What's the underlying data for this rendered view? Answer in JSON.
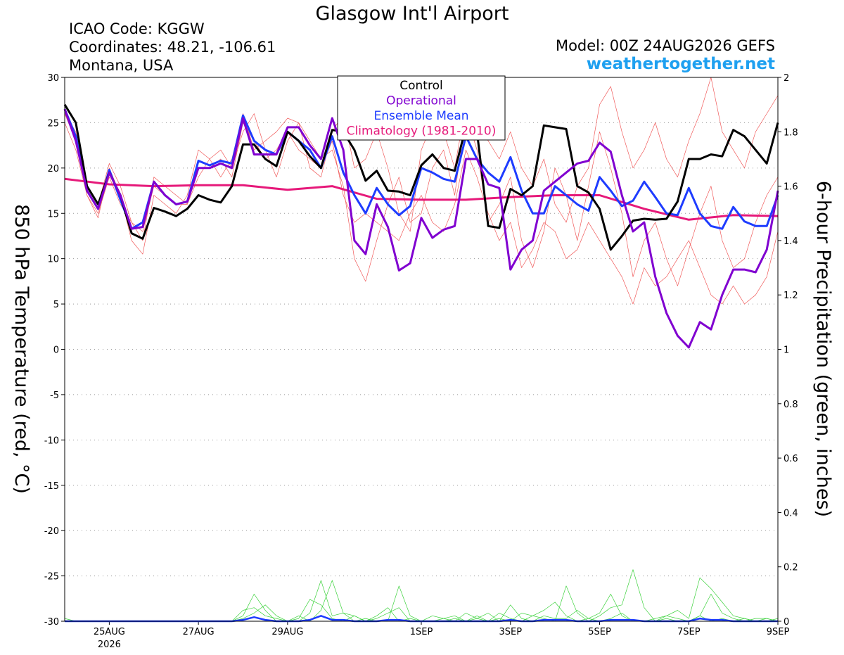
{
  "chart_data": {
    "type": "line",
    "title": "Glasgow Int'l Airport",
    "info_left": [
      "ICAO Code: KGGW",
      "Coordinates: 48.21, -106.61",
      "Montana, USA"
    ],
    "model": "Model: 00Z 24AUG2026 GEFS",
    "site": "weathertogether.net",
    "ylabel": "850 hPa Temperature (red, °C)",
    "y2label": "6-hour Precipitation (green, inches)",
    "grid": true,
    "xlim": [
      0,
      16
    ],
    "xticks": [
      {
        "value": 1,
        "label": "25AUG"
      },
      {
        "value": 3,
        "label": "27AUG"
      },
      {
        "value": 5,
        "label": "29AUG"
      },
      {
        "value": 8,
        "label": "1SEP"
      },
      {
        "value": 10,
        "label": "3SEP"
      },
      {
        "value": 12,
        "label": "5SEP"
      },
      {
        "value": 14,
        "label": "7SEP"
      },
      {
        "value": 16,
        "label": "9SEP"
      }
    ],
    "year_label": "2026",
    "ylim": [
      -30,
      30
    ],
    "yticks": [
      30,
      25,
      20,
      15,
      10,
      5,
      0,
      -5,
      -10,
      -15,
      -20,
      -25,
      -30
    ],
    "y2lim": [
      0,
      2
    ],
    "y2ticks": [
      0,
      0.2,
      0.4,
      0.6,
      0.8,
      1,
      1.2,
      1.4,
      1.6,
      1.8,
      2
    ],
    "x": [
      0,
      0.25,
      0.5,
      0.75,
      1,
      1.25,
      1.5,
      1.75,
      2,
      2.25,
      2.5,
      2.75,
      3,
      3.25,
      3.5,
      3.75,
      4,
      4.25,
      4.5,
      4.75,
      5,
      5.25,
      5.5,
      5.75,
      6,
      6.25,
      6.5,
      6.75,
      7,
      7.25,
      7.5,
      7.75,
      8,
      8.25,
      8.5,
      8.75,
      9,
      9.25,
      9.5,
      9.75,
      10,
      10.25,
      10.5,
      10.75,
      11,
      11.25,
      11.5,
      11.75,
      12,
      12.25,
      12.5,
      12.75,
      13,
      13.25,
      13.5,
      13.75,
      14,
      14.25,
      14.5,
      14.75,
      15,
      15.25,
      15.5,
      15.75,
      16
    ],
    "members": [
      {
        "color": "#f05a5a",
        "values": [
          25,
          22,
          17,
          14.5,
          20,
          17,
          12,
          10.5,
          17,
          16,
          15,
          17,
          22,
          21,
          19,
          21,
          26,
          22,
          23,
          24,
          25.5,
          25,
          23,
          21,
          22,
          18,
          10,
          7.5,
          12,
          16,
          19,
          14,
          15,
          20,
          22,
          17,
          26,
          22,
          14,
          16,
          19,
          12,
          9,
          13,
          20,
          17,
          12,
          18,
          24,
          20,
          15,
          8,
          12,
          14,
          10,
          7,
          11,
          15,
          18,
          12,
          9,
          10,
          14,
          17,
          19
        ]
      },
      {
        "color": "#f05a5a",
        "values": [
          26,
          24,
          18,
          16,
          20.5,
          18,
          14,
          12,
          19,
          18,
          17,
          16,
          19,
          21,
          22,
          20,
          24,
          26,
          22,
          19,
          23,
          25,
          20,
          19,
          24,
          26,
          20,
          21,
          24,
          20,
          15,
          13,
          22,
          25,
          24,
          20,
          27,
          25,
          23,
          21,
          24,
          20,
          18,
          21,
          16,
          14,
          18,
          20,
          27,
          29,
          24,
          20,
          22,
          25,
          21,
          19,
          23,
          26,
          30,
          24,
          22,
          20,
          24,
          26,
          28
        ]
      },
      {
        "color": "#f05a5a",
        "values": [
          26,
          23,
          17,
          15,
          19,
          16,
          14,
          13,
          18,
          17,
          16,
          16,
          20,
          20,
          21,
          19,
          25,
          23,
          21,
          22,
          24,
          22,
          21,
          20,
          23,
          17,
          14,
          15,
          14,
          13,
          12,
          15,
          17,
          14,
          13,
          16,
          22,
          19,
          15,
          12,
          14,
          9,
          11,
          14,
          13,
          10,
          11,
          14,
          12,
          10,
          8,
          5,
          9,
          7,
          8,
          10,
          12,
          9,
          6,
          5,
          7,
          5,
          6,
          8,
          13
        ]
      }
    ],
    "precip_members": [
      {
        "color": "#3cd23c",
        "axis": "y2",
        "values": [
          0.01,
          0,
          0,
          0,
          0,
          0,
          0,
          0,
          0,
          0,
          0,
          0,
          0,
          0,
          0,
          0,
          0.02,
          0.1,
          0.04,
          0,
          0,
          0,
          0.03,
          0.15,
          0.02,
          0.03,
          0,
          0.01,
          0,
          0,
          0.13,
          0.02,
          0,
          0,
          0,
          0.01,
          0,
          0.02,
          0,
          0.01,
          0,
          0.03,
          0.02,
          0.01,
          0,
          0.13,
          0.03,
          0,
          0.02,
          0.05,
          0.06,
          0.19,
          0.05,
          0,
          0.01,
          0,
          0,
          0.02,
          0,
          0.01,
          0,
          0.01,
          0,
          0,
          0.01
        ]
      },
      {
        "color": "#3cd23c",
        "axis": "y2",
        "values": [
          0,
          0,
          0,
          0,
          0,
          0,
          0,
          0,
          0,
          0,
          0,
          0,
          0,
          0,
          0,
          0,
          0.01,
          0.03,
          0.06,
          0.02,
          0,
          0.02,
          0,
          0.04,
          0.15,
          0.03,
          0.02,
          0,
          0.01,
          0.03,
          0.05,
          0,
          0,
          0.02,
          0.01,
          0,
          0.03,
          0.01,
          0.03,
          0,
          0.06,
          0.01,
          0,
          0.02,
          0.01,
          0.01,
          0.04,
          0.01,
          0,
          0.01,
          0.03,
          0,
          0,
          0.01,
          0.02,
          0.04,
          0.01,
          0.16,
          0.12,
          0.07,
          0.02,
          0.01,
          0,
          0.01,
          0
        ]
      },
      {
        "color": "#3cd23c",
        "axis": "y2",
        "values": [
          0,
          0,
          0,
          0,
          0,
          0,
          0,
          0,
          0,
          0,
          0,
          0,
          0,
          0,
          0,
          0,
          0.04,
          0.05,
          0.02,
          0.01,
          0,
          0.01,
          0.08,
          0.06,
          0.01,
          0,
          0.02,
          0,
          0.02,
          0.05,
          0,
          0.01,
          0,
          0,
          0.01,
          0.02,
          0,
          0.01,
          0,
          0.03,
          0.01,
          0,
          0.02,
          0.04,
          0.07,
          0.02,
          0,
          0.01,
          0.03,
          0.1,
          0.02,
          0,
          0,
          0,
          0.02,
          0.01,
          0,
          0.02,
          0.1,
          0.03,
          0.01,
          0,
          0.01,
          0.01,
          0
        ]
      },
      {
        "color": "#1e3cff",
        "axis": "y2",
        "values": [
          0,
          0,
          0,
          0,
          0,
          0,
          0,
          0,
          0,
          0,
          0,
          0,
          0,
          0,
          0,
          0,
          0.005,
          0.015,
          0.005,
          0,
          0,
          0,
          0.005,
          0.02,
          0.005,
          0.005,
          0,
          0,
          0,
          0.005,
          0.005,
          0,
          0,
          0,
          0,
          0,
          0,
          0,
          0,
          0,
          0.005,
          0,
          0,
          0.005,
          0.005,
          0.005,
          0,
          0,
          0,
          0.005,
          0.005,
          0.005,
          0,
          0,
          0,
          0,
          0,
          0.01,
          0.005,
          0.005,
          0,
          0,
          0,
          0,
          0
        ]
      }
    ],
    "series": [
      {
        "name": "Control",
        "color": "#000000",
        "values": [
          27,
          25,
          18,
          16,
          19.5,
          17,
          12.8,
          12.2,
          15.6,
          15.2,
          14.7,
          15.5,
          17,
          16.5,
          16.2,
          18,
          22.6,
          22.6,
          21,
          20.2,
          24,
          23,
          21.3,
          20,
          24.2,
          24,
          22,
          18.6,
          19.7,
          17.5,
          17.4,
          17,
          20.3,
          21.5,
          20,
          19.7,
          24.5,
          24,
          13.6,
          13.4,
          17.7,
          17,
          18,
          24.7,
          24.5,
          24.3,
          18,
          17.3,
          15.5,
          11,
          12.5,
          14.2,
          14.4,
          14.3,
          14.4,
          16.3,
          21,
          21,
          21.5,
          21.3,
          24.2,
          23.5,
          22,
          20.5,
          25
        ]
      },
      {
        "name": "Operational",
        "color": "#8000d0",
        "values": [
          26.5,
          23,
          17.5,
          15.5,
          19.5,
          17,
          13.3,
          13.5,
          18.5,
          17,
          16,
          16.3,
          20,
          20,
          20.5,
          20,
          25.5,
          21.5,
          21.5,
          21.5,
          24.5,
          24.5,
          22.5,
          21,
          25.5,
          22,
          12,
          10.5,
          16,
          13.5,
          8.7,
          9.5,
          14.5,
          12.3,
          13.2,
          13.6,
          21,
          21,
          18.2,
          17.8,
          8.8,
          11,
          12,
          17.5,
          18.5,
          19.5,
          20.5,
          20.8,
          22.8,
          21.8,
          17,
          13,
          14,
          8,
          4,
          1.5,
          0.2,
          3,
          2.2,
          6,
          8.8,
          8.8,
          8.5,
          11,
          17.5
        ]
      },
      {
        "name": "Ensemble Mean",
        "color": "#1e3cff",
        "values": [
          26.5,
          23.5,
          17.5,
          15.5,
          19.8,
          16.5,
          13.3,
          14,
          18.5,
          17,
          16,
          16.3,
          20.8,
          20.3,
          20.8,
          20.5,
          25.8,
          23,
          22,
          21.5,
          24,
          23,
          22,
          20,
          23.5,
          19.5,
          17,
          15,
          17.8,
          16,
          14.8,
          15.8,
          20,
          19.5,
          18.8,
          18.5,
          23.5,
          21,
          19.5,
          18.5,
          21.2,
          17.5,
          15,
          15,
          18,
          17,
          16,
          15.3,
          19,
          17.5,
          15.8,
          16.4,
          18.5,
          16.8,
          15,
          14.8,
          17.8,
          15,
          13.6,
          13.3,
          15.7,
          14.1,
          13.6,
          13.6,
          17
        ]
      },
      {
        "name": "Climatology (1981-2010)",
        "color": "#e6197a",
        "x": [
          0,
          1,
          2,
          3,
          4,
          5,
          6,
          7,
          8,
          9,
          10,
          11,
          12,
          13,
          14,
          15,
          16
        ],
        "values": [
          18.8,
          18.2,
          18,
          18.1,
          18.1,
          17.6,
          18,
          16.6,
          16.5,
          16.5,
          16.8,
          17,
          17,
          15.5,
          14.3,
          14.8,
          14.7
        ]
      }
    ]
  }
}
